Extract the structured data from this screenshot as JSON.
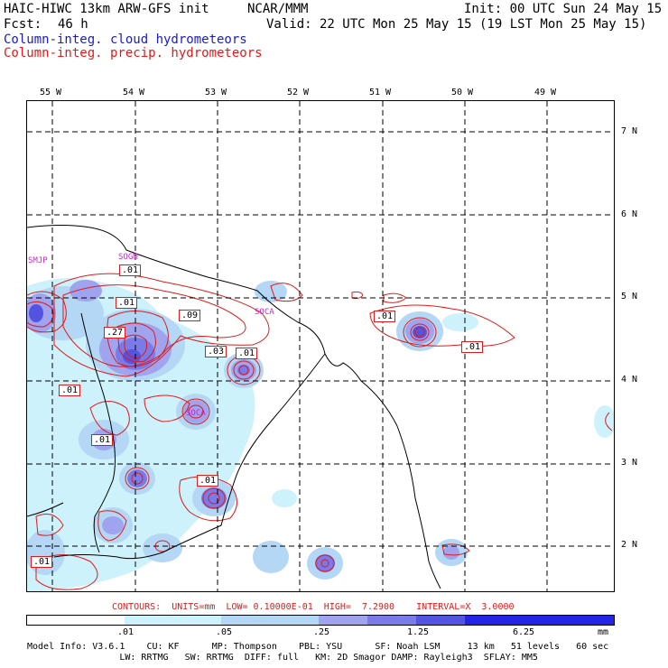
{
  "header": {
    "title": "HAIC-HIWC 13km ARW-GFS init",
    "org": "NCAR/MMM",
    "init": "Init: 00 UTC Sun 24 May 15",
    "fcst_label": "Fcst:",
    "fcst_value": "46 h",
    "valid": "Valid: 22 UTC Mon 25 May 15 (19 LST Mon 25 May 15)",
    "field1": "Column-integ. cloud hydrometeors",
    "field2": "Column-integ. precip. hydrometeors"
  },
  "axes": {
    "lon_labels": [
      "55 W",
      "54 W",
      "53 W",
      "52 W",
      "51 W",
      "50 W",
      "49 W"
    ],
    "lat_labels": [
      "7 N",
      "6 N",
      "5 N",
      "4 N",
      "3 N",
      "2 N"
    ]
  },
  "stations": [
    "SMJP",
    "SOGM",
    "SOCA",
    "SOCA"
  ],
  "contour_labels": [
    ".01",
    ".01",
    ".09",
    ".27",
    ".03",
    ".01",
    ".01",
    ".01",
    ".01",
    ".01",
    ".01",
    ".01"
  ],
  "contour_info": "CONTOURS:  UNITS=mm  LOW= 0.10000E-01  HIGH=  7.2900    INTERVAL=X  3.0000",
  "colorbar": {
    "ticks": [
      ".01",
      ".05",
      ".25",
      "1.25",
      "6.25"
    ],
    "units": "mm",
    "colors": [
      "#ffffff",
      "#cdf2fb",
      "#b3d7f4",
      "#a0a4ee",
      "#7a7ae8",
      "#5454e2",
      "#2424e6"
    ]
  },
  "footer": {
    "line1": "Model Info: V3.6.1    CU: KF      MP: Thompson    PBL: YSU      SF: Noah LSM     13 km   51 levels   60 sec",
    "line2": "                 LW: RRTMG   SW: RRTMG  DIFF: full   KM: 2D Smagor DAMP: Rayleigh3  SFLAY: MM5"
  },
  "colors": {
    "cloud_field": "#1a1acc",
    "precip_field": "#e01a1a",
    "stations": "#cc22cc"
  }
}
